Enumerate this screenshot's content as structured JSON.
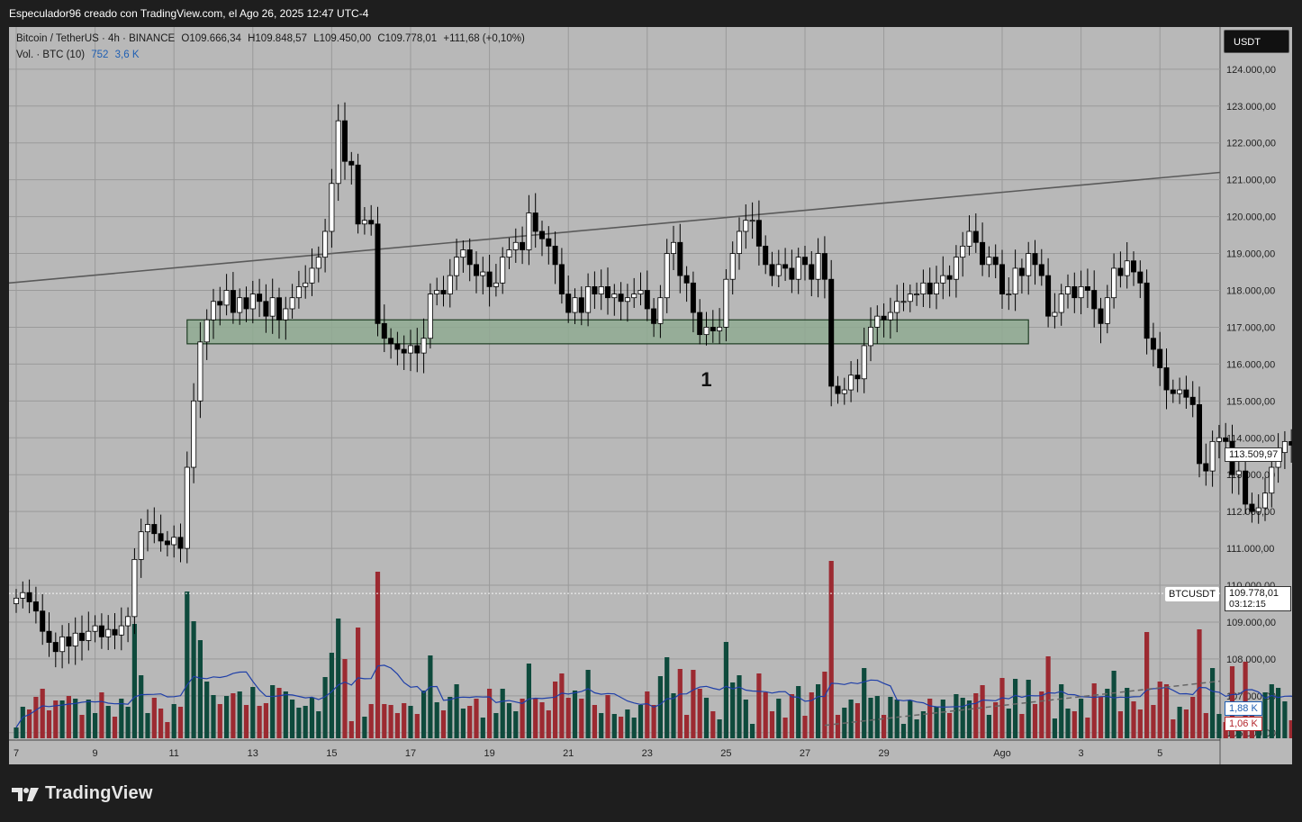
{
  "header": {
    "title": "Especulador96 creado con TradingView.com, el Ago 26, 2025 12:47 UTC-4"
  },
  "legend": {
    "symbol": "Bitcoin / TetherUS · 4h · BINANCE",
    "open": "O109.666,34",
    "high": "H109.848,57",
    "low": "L109.450,00",
    "close": "C109.778,01",
    "change": "+111,68 (+0,10%)",
    "volume_label": "Vol. · BTC (10)",
    "volume_value": "752",
    "volume_ma": "3,6 K"
  },
  "currency_button": "USDT",
  "symbol_tag": "BTCUSDT",
  "labels": {
    "current_price": "113.509,97",
    "last_price": "109.778,01",
    "countdown": "03:12:15",
    "volume_up": "1,88 K",
    "volume_down": "1,06 K",
    "annotation": "1"
  },
  "footer": {
    "logo_text": "TradingView"
  },
  "colors": {
    "background": "#b8b8b8",
    "candle_up": "#ffffff",
    "candle_down": "#000000",
    "volume_up": "#0e4a3c",
    "volume_down": "#9c2a31",
    "zone_fill": "#8faa92",
    "zone_border": "#1f3d24",
    "volume_ma": "#1f3fa8",
    "trendline": "#5a5a5a"
  },
  "chart_data": {
    "type": "candlestick",
    "interval": "4h",
    "y_axis_ticks": [
      "124.000,00",
      "123.000,00",
      "122.000,00",
      "121.000,00",
      "120.000,00",
      "119.000,00",
      "118.000,00",
      "117.000,00",
      "116.000,00",
      "115.000,00",
      "114.000,00",
      "113.000,00",
      "112.000,00",
      "111.000,00",
      "110.000,00",
      "109.000,00",
      "108.000,00",
      "107.000,00",
      "106.000,00"
    ],
    "x_axis_ticks": [
      {
        "label": "7",
        "x": 0
      },
      {
        "label": "9",
        "x": 12
      },
      {
        "label": "11",
        "x": 24
      },
      {
        "label": "13",
        "x": 36
      },
      {
        "label": "15",
        "x": 48
      },
      {
        "label": "17",
        "x": 60
      },
      {
        "label": "19",
        "x": 72
      },
      {
        "label": "21",
        "x": 84
      },
      {
        "label": "23",
        "x": 96
      },
      {
        "label": "25",
        "x": 108
      },
      {
        "label": "27",
        "x": 120
      },
      {
        "label": "29",
        "x": 132
      },
      {
        "label": "Ago",
        "x": 150
      },
      {
        "label": "3",
        "x": 162
      },
      {
        "label": "5",
        "x": 174
      }
    ],
    "ylim": [
      105800,
      124900
    ],
    "zone": {
      "from": 116550,
      "to": 117200,
      "x_start": 26,
      "x_end": 154
    },
    "trendline": {
      "x1": 0,
      "y1": 118200,
      "x2": 180,
      "y2": 121200
    },
    "support_dashed": {
      "x1": 123,
      "y1": 106200,
      "x2": 180,
      "y2": 107400
    },
    "closes": [
      109650,
      109800,
      109550,
      109300,
      108750,
      108450,
      108200,
      108600,
      108350,
      108700,
      108500,
      108750,
      108900,
      108600,
      108800,
      108650,
      108900,
      109150,
      110700,
      111450,
      111650,
      111400,
      111200,
      111100,
      111300,
      111000,
      113200,
      115000,
      116600,
      117200,
      117700,
      117600,
      118000,
      117400,
      117800,
      117500,
      117900,
      117700,
      117300,
      117800,
      117200,
      117500,
      117800,
      118100,
      118200,
      118600,
      118900,
      119600,
      120900,
      122600,
      121500,
      121400,
      119800,
      119900,
      119800,
      117100,
      116700,
      116550,
      116400,
      116300,
      116500,
      116300,
      116700,
      117900,
      118000,
      117900,
      118400,
      118900,
      119100,
      118700,
      118400,
      118500,
      118100,
      118200,
      118900,
      119100,
      119300,
      119100,
      120100,
      119600,
      119400,
      119200,
      118700,
      117900,
      117400,
      117800,
      117400,
      118100,
      117900,
      118100,
      117800,
      117900,
      117700,
      117800,
      117900,
      118000,
      117500,
      117100,
      117800,
      119000,
      119300,
      118400,
      118200,
      117400,
      116800,
      117000,
      116900,
      117000,
      118300,
      119000,
      119600,
      119900,
      119900,
      119200,
      118700,
      118400,
      118700,
      118600,
      118300,
      118900,
      118700,
      118300,
      119000,
      118300,
      115400,
      115200,
      115300,
      115700,
      115600,
      116500,
      117000,
      117300,
      117200,
      117400,
      117700,
      117700,
      117900,
      117900,
      118200,
      117900,
      118200,
      118400,
      118300,
      118900,
      119200,
      119600,
      119300,
      118700,
      118900,
      118700,
      117900,
      117900,
      118600,
      118400,
      119000,
      118700,
      118400,
      117300,
      117400,
      117900,
      118100,
      117800,
      118100,
      118000,
      117500,
      117100,
      117800,
      118600,
      118400,
      118800,
      118500,
      118200,
      116700,
      116400,
      115900,
      115300,
      115200,
      115300,
      115100,
      114900,
      113300,
      113100,
      113900,
      114000,
      113900,
      113000,
      113100,
      112200,
      112000,
      112100,
      112500,
      113200,
      113600,
      113900,
      113800,
      113900,
      114100,
      114000,
      113900,
      114300,
      114100,
      114500,
      114100,
      114400,
      114600,
      114500,
      114600,
      114200,
      113800,
      114600,
      112900,
      113400,
      114100,
      113500
    ]
  }
}
